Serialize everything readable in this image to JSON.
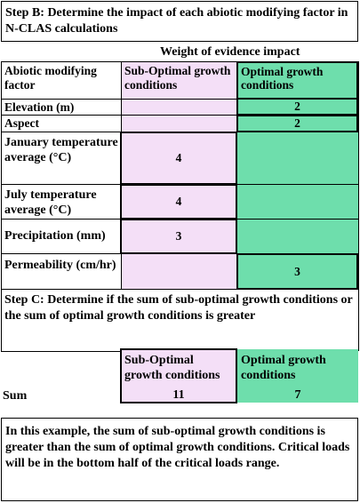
{
  "step_b": {
    "title": "Step B: Determine the impact of each abiotic modifying factor in N-CLAS calculations"
  },
  "weight_header": "Weight of evidence impact",
  "columns": {
    "factor": "Abiotic modifying factor",
    "sub_optimal": "Sub-Optimal growth conditions",
    "optimal": "Optimal   growth conditions"
  },
  "rows": [
    {
      "factor": "Elevation (m)",
      "sub_optimal": "",
      "optimal": "2"
    },
    {
      "factor": "Aspect",
      "sub_optimal": "",
      "optimal": "2"
    },
    {
      "factor": "January temperature average (°C)",
      "sub_optimal": "4",
      "optimal": ""
    },
    {
      "factor": "July temperature average (°C)",
      "sub_optimal": "4",
      "optimal": ""
    },
    {
      "factor": "Precipitation (mm)",
      "sub_optimal": "3",
      "optimal": ""
    },
    {
      "factor": "Permeability (cm/hr)",
      "sub_optimal": "",
      "optimal": "3"
    }
  ],
  "step_c": {
    "title": "Step C: Determine if  the sum of sub-optimal growth conditions or the sum of optimal growth conditions is greater"
  },
  "sum": {
    "sub_optimal_header": "Sub-Optimal growth conditions",
    "optimal_header": "Optimal growth conditions",
    "label": "Sum",
    "sub_optimal_value": "11",
    "optimal_value": "7"
  },
  "conclusion": "In this example, the  sum of sub-optimal growth conditions is greater than the sum of optimal growth conditions.  Critical loads will be in the bottom half of the critical loads range."
}
